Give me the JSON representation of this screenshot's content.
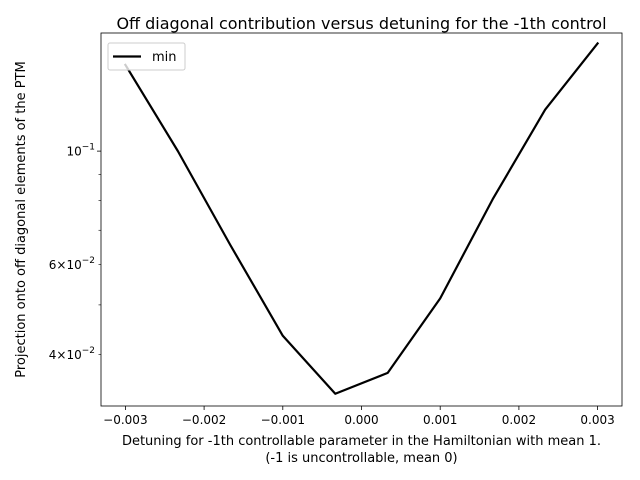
{
  "chart_data": {
    "type": "line",
    "title": "Off diagonal contribution versus detuning for the -1th control",
    "xlabel_line1": "Detuning for -1th controllable parameter in the Hamiltonian with mean 1.",
    "xlabel_line2": "(-1 is uncontrollable, mean 0)",
    "ylabel": "Projection onto off diagonal elements of the PTM",
    "yscale": "log",
    "xlim": [
      -0.00331,
      0.00331
    ],
    "ylim": [
      0.0317,
      0.1703
    ],
    "x_ticks": [
      {
        "value": -0.003,
        "label": "−0.003"
      },
      {
        "value": -0.002,
        "label": "−0.002"
      },
      {
        "value": -0.001,
        "label": "−0.001"
      },
      {
        "value": 0.0,
        "label": "0.000"
      },
      {
        "value": 0.001,
        "label": "0.001"
      },
      {
        "value": 0.002,
        "label": "0.002"
      },
      {
        "value": 0.003,
        "label": "0.003"
      }
    ],
    "y_major_ticks": [
      {
        "value": 0.1,
        "base": "10",
        "exp": "−1"
      }
    ],
    "y_minor_ticks": [
      {
        "value": 0.04,
        "mant": "4",
        "base": "10",
        "exp": "−2"
      },
      {
        "value": 0.05
      },
      {
        "value": 0.06,
        "mant": "6",
        "base": "10",
        "exp": "−2"
      },
      {
        "value": 0.07
      },
      {
        "value": 0.08
      },
      {
        "value": 0.09
      }
    ],
    "legend": {
      "placement": "upper-left",
      "entries": [
        "min"
      ]
    },
    "series": [
      {
        "name": "min",
        "color": "#000000",
        "x": [
          -0.003,
          -0.002333,
          -0.001667,
          -0.001,
          -0.000333,
          0.000333,
          0.001,
          0.001667,
          0.002333,
          0.003
        ],
        "y": [
          0.1475,
          0.1,
          0.0655,
          0.0435,
          0.0335,
          0.0368,
          0.0515,
          0.0805,
          0.1205,
          0.1625
        ]
      }
    ]
  }
}
